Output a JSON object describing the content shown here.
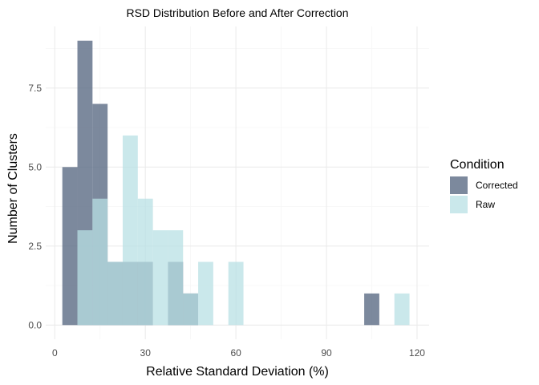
{
  "chart_data": {
    "type": "bar",
    "title": "RSD Distribution Before and After Correction",
    "xlabel": "Relative Standard Deviation (%)",
    "ylabel": "Number of Clusters",
    "xlim": [
      -3,
      124
    ],
    "ylim": [
      -0.45,
      9.45
    ],
    "xticks": [
      0,
      30,
      60,
      90,
      120
    ],
    "yticks": [
      0.0,
      2.5,
      5.0,
      7.5
    ],
    "ytick_labels": [
      "0.0",
      "2.5",
      "5.0",
      "7.5"
    ],
    "bin_width": 5,
    "grid": true,
    "legend": {
      "title": "Condition",
      "position": "right"
    },
    "series": [
      {
        "name": "Corrected",
        "color": "#5b6b84",
        "bins": [
          {
            "x0": 2.5,
            "x1": 7.5,
            "count": 5
          },
          {
            "x0": 7.5,
            "x1": 12.5,
            "count": 9
          },
          {
            "x0": 12.5,
            "x1": 17.5,
            "count": 7
          },
          {
            "x0": 17.5,
            "x1": 22.5,
            "count": 2
          },
          {
            "x0": 22.5,
            "x1": 27.5,
            "count": 2
          },
          {
            "x0": 27.5,
            "x1": 32.5,
            "count": 2
          },
          {
            "x0": 37.5,
            "x1": 42.5,
            "count": 2
          },
          {
            "x0": 42.5,
            "x1": 47.5,
            "count": 1
          },
          {
            "x0": 102.5,
            "x1": 107.5,
            "count": 1
          }
        ]
      },
      {
        "name": "Raw",
        "color": "#b8e0e4",
        "bins": [
          {
            "x0": 7.5,
            "x1": 12.5,
            "count": 3
          },
          {
            "x0": 12.5,
            "x1": 17.5,
            "count": 4
          },
          {
            "x0": 17.5,
            "x1": 22.5,
            "count": 2
          },
          {
            "x0": 22.5,
            "x1": 27.5,
            "count": 6
          },
          {
            "x0": 27.5,
            "x1": 32.5,
            "count": 4
          },
          {
            "x0": 32.5,
            "x1": 37.5,
            "count": 3
          },
          {
            "x0": 37.5,
            "x1": 42.5,
            "count": 3
          },
          {
            "x0": 42.5,
            "x1": 47.5,
            "count": 1
          },
          {
            "x0": 47.5,
            "x1": 52.5,
            "count": 2
          },
          {
            "x0": 57.5,
            "x1": 62.5,
            "count": 2
          },
          {
            "x0": 112.5,
            "x1": 117.5,
            "count": 1
          }
        ]
      }
    ]
  }
}
